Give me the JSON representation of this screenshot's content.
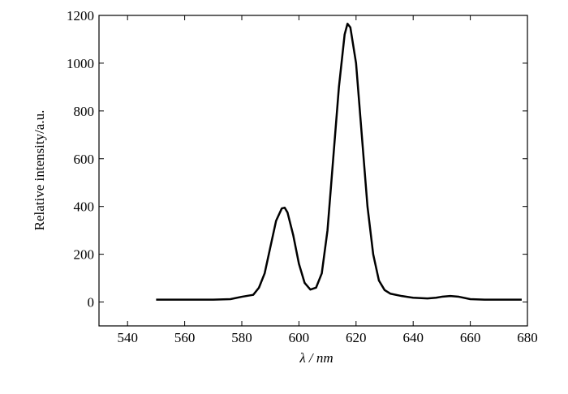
{
  "chart_data": {
    "type": "line",
    "xlabel": "λ / nm",
    "ylabel": "Relative intensity/a.u.",
    "x": [
      550,
      560,
      570,
      576,
      580,
      584,
      586,
      588,
      590,
      592,
      594,
      595,
      596,
      598,
      600,
      602,
      604,
      606,
      608,
      610,
      612,
      614,
      616,
      617,
      618,
      620,
      622,
      624,
      626,
      628,
      630,
      632,
      636,
      640,
      645,
      648,
      650,
      653,
      656,
      660,
      665,
      670,
      678
    ],
    "series": [
      {
        "color": "#000000",
        "values": [
          10,
          10,
          10,
          12,
          22,
          30,
          60,
          120,
          230,
          340,
          392,
          395,
          375,
          280,
          160,
          80,
          52,
          60,
          120,
          300,
          600,
          900,
          1120,
          1165,
          1150,
          1000,
          700,
          400,
          200,
          90,
          50,
          35,
          25,
          18,
          15,
          18,
          22,
          25,
          22,
          12,
          10,
          10,
          10
        ]
      }
    ],
    "xlim": [
      530,
      680
    ],
    "xticks": [
      540,
      560,
      580,
      600,
      620,
      640,
      660,
      680
    ],
    "ylim": [
      -100,
      1200
    ],
    "yticks": [
      0,
      200,
      400,
      600,
      800,
      1000,
      1200
    ],
    "grid": false
  }
}
